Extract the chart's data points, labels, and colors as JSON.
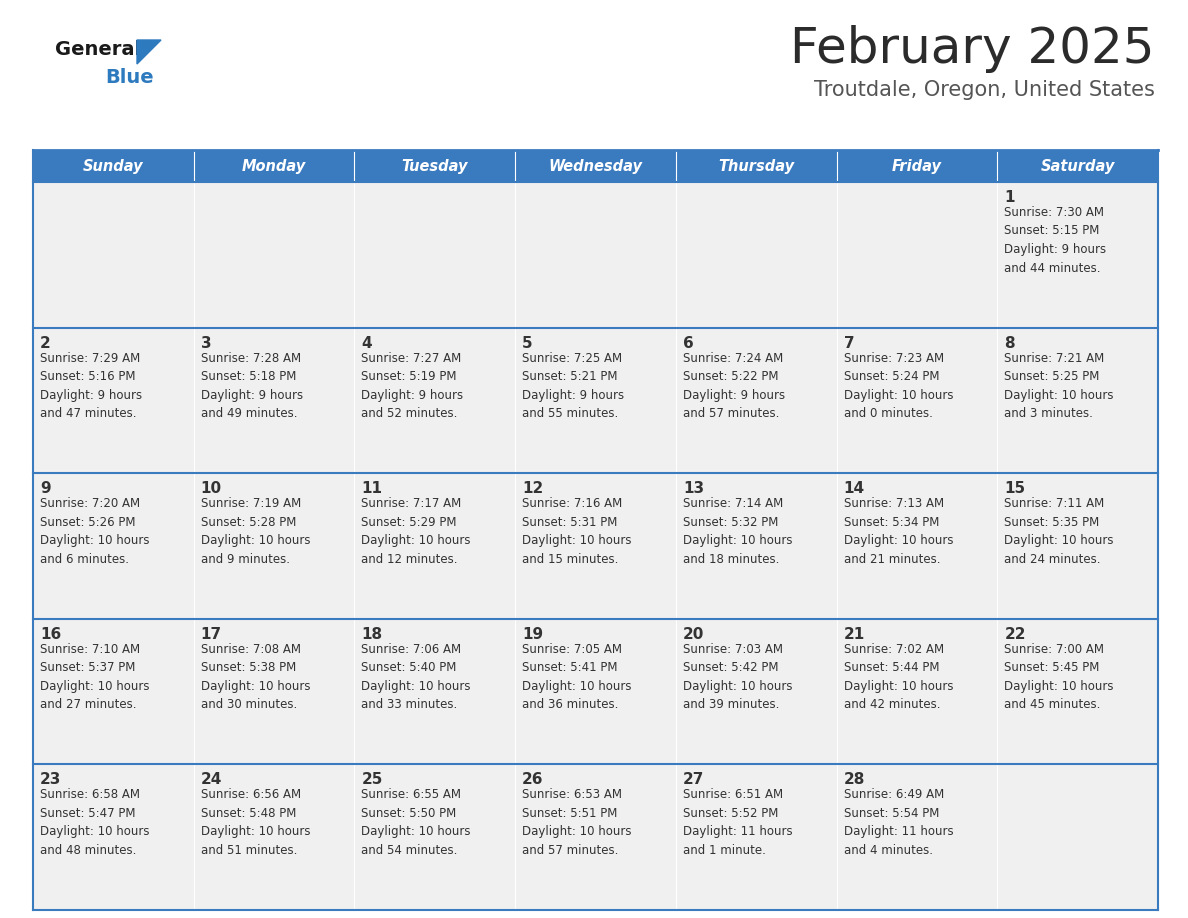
{
  "title": "February 2025",
  "subtitle": "Troutdale, Oregon, United States",
  "days_of_week": [
    "Sunday",
    "Monday",
    "Tuesday",
    "Wednesday",
    "Thursday",
    "Friday",
    "Saturday"
  ],
  "header_bg": "#3a7abf",
  "header_text": "#ffffff",
  "cell_bg": "#f0f0f0",
  "cell_text": "#333333",
  "border_color": "#3a7abf",
  "title_color": "#2b2b2b",
  "subtitle_color": "#555555",
  "logo_general_color": "#1a1a1a",
  "logo_blue_color": "#2e7abf",
  "calendar_data": [
    [
      {
        "day": 0,
        "info": ""
      },
      {
        "day": 0,
        "info": ""
      },
      {
        "day": 0,
        "info": ""
      },
      {
        "day": 0,
        "info": ""
      },
      {
        "day": 0,
        "info": ""
      },
      {
        "day": 0,
        "info": ""
      },
      {
        "day": 1,
        "info": "Sunrise: 7:30 AM\nSunset: 5:15 PM\nDaylight: 9 hours\nand 44 minutes."
      }
    ],
    [
      {
        "day": 2,
        "info": "Sunrise: 7:29 AM\nSunset: 5:16 PM\nDaylight: 9 hours\nand 47 minutes."
      },
      {
        "day": 3,
        "info": "Sunrise: 7:28 AM\nSunset: 5:18 PM\nDaylight: 9 hours\nand 49 minutes."
      },
      {
        "day": 4,
        "info": "Sunrise: 7:27 AM\nSunset: 5:19 PM\nDaylight: 9 hours\nand 52 minutes."
      },
      {
        "day": 5,
        "info": "Sunrise: 7:25 AM\nSunset: 5:21 PM\nDaylight: 9 hours\nand 55 minutes."
      },
      {
        "day": 6,
        "info": "Sunrise: 7:24 AM\nSunset: 5:22 PM\nDaylight: 9 hours\nand 57 minutes."
      },
      {
        "day": 7,
        "info": "Sunrise: 7:23 AM\nSunset: 5:24 PM\nDaylight: 10 hours\nand 0 minutes."
      },
      {
        "day": 8,
        "info": "Sunrise: 7:21 AM\nSunset: 5:25 PM\nDaylight: 10 hours\nand 3 minutes."
      }
    ],
    [
      {
        "day": 9,
        "info": "Sunrise: 7:20 AM\nSunset: 5:26 PM\nDaylight: 10 hours\nand 6 minutes."
      },
      {
        "day": 10,
        "info": "Sunrise: 7:19 AM\nSunset: 5:28 PM\nDaylight: 10 hours\nand 9 minutes."
      },
      {
        "day": 11,
        "info": "Sunrise: 7:17 AM\nSunset: 5:29 PM\nDaylight: 10 hours\nand 12 minutes."
      },
      {
        "day": 12,
        "info": "Sunrise: 7:16 AM\nSunset: 5:31 PM\nDaylight: 10 hours\nand 15 minutes."
      },
      {
        "day": 13,
        "info": "Sunrise: 7:14 AM\nSunset: 5:32 PM\nDaylight: 10 hours\nand 18 minutes."
      },
      {
        "day": 14,
        "info": "Sunrise: 7:13 AM\nSunset: 5:34 PM\nDaylight: 10 hours\nand 21 minutes."
      },
      {
        "day": 15,
        "info": "Sunrise: 7:11 AM\nSunset: 5:35 PM\nDaylight: 10 hours\nand 24 minutes."
      }
    ],
    [
      {
        "day": 16,
        "info": "Sunrise: 7:10 AM\nSunset: 5:37 PM\nDaylight: 10 hours\nand 27 minutes."
      },
      {
        "day": 17,
        "info": "Sunrise: 7:08 AM\nSunset: 5:38 PM\nDaylight: 10 hours\nand 30 minutes."
      },
      {
        "day": 18,
        "info": "Sunrise: 7:06 AM\nSunset: 5:40 PM\nDaylight: 10 hours\nand 33 minutes."
      },
      {
        "day": 19,
        "info": "Sunrise: 7:05 AM\nSunset: 5:41 PM\nDaylight: 10 hours\nand 36 minutes."
      },
      {
        "day": 20,
        "info": "Sunrise: 7:03 AM\nSunset: 5:42 PM\nDaylight: 10 hours\nand 39 minutes."
      },
      {
        "day": 21,
        "info": "Sunrise: 7:02 AM\nSunset: 5:44 PM\nDaylight: 10 hours\nand 42 minutes."
      },
      {
        "day": 22,
        "info": "Sunrise: 7:00 AM\nSunset: 5:45 PM\nDaylight: 10 hours\nand 45 minutes."
      }
    ],
    [
      {
        "day": 23,
        "info": "Sunrise: 6:58 AM\nSunset: 5:47 PM\nDaylight: 10 hours\nand 48 minutes."
      },
      {
        "day": 24,
        "info": "Sunrise: 6:56 AM\nSunset: 5:48 PM\nDaylight: 10 hours\nand 51 minutes."
      },
      {
        "day": 25,
        "info": "Sunrise: 6:55 AM\nSunset: 5:50 PM\nDaylight: 10 hours\nand 54 minutes."
      },
      {
        "day": 26,
        "info": "Sunrise: 6:53 AM\nSunset: 5:51 PM\nDaylight: 10 hours\nand 57 minutes."
      },
      {
        "day": 27,
        "info": "Sunrise: 6:51 AM\nSunset: 5:52 PM\nDaylight: 11 hours\nand 1 minute."
      },
      {
        "day": 28,
        "info": "Sunrise: 6:49 AM\nSunset: 5:54 PM\nDaylight: 11 hours\nand 4 minutes."
      },
      {
        "day": 0,
        "info": ""
      }
    ]
  ]
}
